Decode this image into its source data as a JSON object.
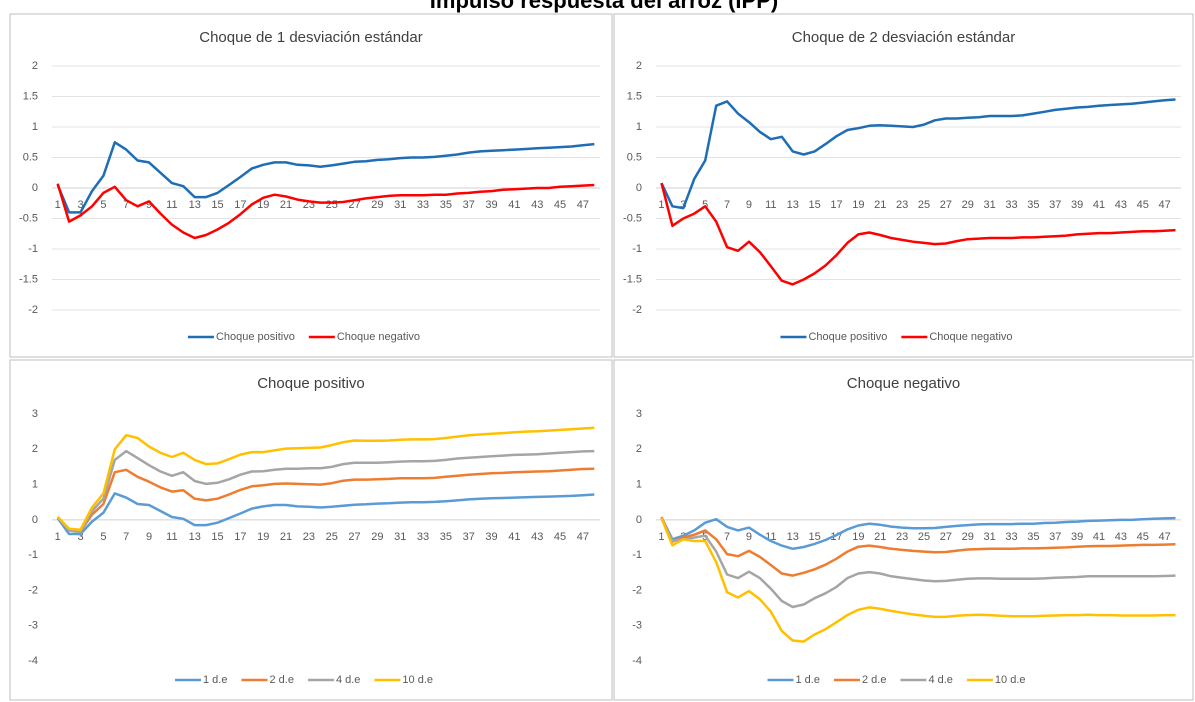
{
  "title": "Impulso respuesta del arroz (IPP)",
  "chart_data": [
    {
      "type": "line",
      "title": "Choque de 1 desviación estándar",
      "categories": [
        1,
        null,
        3,
        null,
        5,
        null,
        7,
        null,
        9,
        null,
        11,
        null,
        13,
        null,
        15,
        null,
        17,
        null,
        19,
        null,
        21,
        null,
        23,
        null,
        25,
        null,
        27,
        null,
        29,
        null,
        31,
        null,
        33,
        null,
        35,
        null,
        37,
        null,
        39,
        null,
        41,
        null,
        43,
        null,
        45,
        null,
        47,
        null
      ],
      "ylim": [
        -2,
        2
      ],
      "yticks": [
        -2,
        -1.5,
        -1,
        -0.5,
        0,
        0.5,
        1,
        1.5,
        2
      ],
      "grid": true,
      "legend": "bottom",
      "series": [
        {
          "name": "Choque positivo",
          "color": "#1f6db5",
          "values": [
            0.05,
            -0.4,
            -0.4,
            -0.05,
            0.2,
            0.75,
            0.63,
            0.45,
            0.42,
            0.25,
            0.08,
            0.03,
            -0.15,
            -0.15,
            -0.08,
            0.05,
            0.18,
            0.32,
            0.38,
            0.42,
            0.42,
            0.38,
            0.37,
            0.35,
            0.37,
            0.4,
            0.43,
            0.44,
            0.46,
            0.47,
            0.49,
            0.5,
            0.5,
            0.51,
            0.53,
            0.55,
            0.58,
            0.6,
            0.61,
            0.62,
            0.63,
            0.64,
            0.65,
            0.66,
            0.67,
            0.68,
            0.7,
            0.72
          ]
        },
        {
          "name": "Choque negativo",
          "color": "#ff0000",
          "values": [
            0.07,
            -0.55,
            -0.45,
            -0.3,
            -0.08,
            0.02,
            -0.2,
            -0.3,
            -0.22,
            -0.42,
            -0.6,
            -0.73,
            -0.82,
            -0.77,
            -0.68,
            -0.57,
            -0.43,
            -0.27,
            -0.16,
            -0.11,
            -0.14,
            -0.19,
            -0.22,
            -0.24,
            -0.24,
            -0.23,
            -0.2,
            -0.17,
            -0.15,
            -0.13,
            -0.12,
            -0.12,
            -0.12,
            -0.11,
            -0.11,
            -0.09,
            -0.08,
            -0.06,
            -0.05,
            -0.03,
            -0.02,
            -0.01,
            0,
            0,
            0.02,
            0.03,
            0.04,
            0.05
          ]
        }
      ]
    },
    {
      "type": "line",
      "title": "Choque de 2 desviación estándar",
      "categories": [
        1,
        null,
        3,
        null,
        5,
        null,
        7,
        null,
        9,
        null,
        11,
        null,
        13,
        null,
        15,
        null,
        17,
        null,
        19,
        null,
        21,
        null,
        23,
        null,
        25,
        null,
        27,
        null,
        29,
        null,
        31,
        null,
        33,
        null,
        35,
        null,
        37,
        null,
        39,
        null,
        41,
        null,
        43,
        null,
        45,
        null,
        47,
        null
      ],
      "ylim": [
        -2,
        2
      ],
      "yticks": [
        -2,
        -1.5,
        -1,
        -0.5,
        0,
        0.5,
        1,
        1.5,
        2
      ],
      "grid": true,
      "legend": "bottom",
      "series": [
        {
          "name": "Choque positivo",
          "color": "#1f6db5",
          "values": [
            0.08,
            -0.3,
            -0.33,
            0.15,
            0.45,
            1.35,
            1.42,
            1.22,
            1.08,
            0.92,
            0.8,
            0.84,
            0.6,
            0.55,
            0.6,
            0.72,
            0.85,
            0.95,
            0.98,
            1.02,
            1.03,
            1.02,
            1.01,
            1.0,
            1.04,
            1.11,
            1.14,
            1.14,
            1.15,
            1.16,
            1.18,
            1.18,
            1.18,
            1.19,
            1.22,
            1.25,
            1.28,
            1.3,
            1.32,
            1.33,
            1.35,
            1.36,
            1.37,
            1.38,
            1.4,
            1.42,
            1.44,
            1.45
          ]
        },
        {
          "name": "Choque negativo",
          "color": "#ff0000",
          "values": [
            0.08,
            -0.62,
            -0.5,
            -0.42,
            -0.3,
            -0.55,
            -0.97,
            -1.03,
            -0.88,
            -1.05,
            -1.28,
            -1.52,
            -1.58,
            -1.5,
            -1.4,
            -1.27,
            -1.1,
            -0.9,
            -0.76,
            -0.73,
            -0.77,
            -0.82,
            -0.85,
            -0.88,
            -0.9,
            -0.92,
            -0.91,
            -0.87,
            -0.84,
            -0.83,
            -0.82,
            -0.82,
            -0.82,
            -0.81,
            -0.81,
            -0.8,
            -0.79,
            -0.78,
            -0.76,
            -0.75,
            -0.74,
            -0.74,
            -0.73,
            -0.72,
            -0.71,
            -0.71,
            -0.7,
            -0.69
          ]
        }
      ]
    },
    {
      "type": "line",
      "title": "Choque positivo",
      "categories": [
        1,
        null,
        3,
        null,
        5,
        null,
        7,
        null,
        9,
        null,
        11,
        null,
        13,
        null,
        15,
        null,
        17,
        null,
        19,
        null,
        21,
        null,
        23,
        null,
        25,
        null,
        27,
        null,
        29,
        null,
        31,
        null,
        33,
        null,
        35,
        null,
        37,
        null,
        39,
        null,
        41,
        null,
        43,
        null,
        45,
        null,
        47,
        null
      ],
      "ylim": [
        -4,
        3
      ],
      "yticks": [
        -4,
        -3,
        -2,
        -1,
        0,
        1,
        2,
        3
      ],
      "grid": false,
      "legend": "bottom",
      "series": [
        {
          "name": "1 d.e",
          "color": "#5b9bd5",
          "values": [
            0.05,
            -0.4,
            -0.4,
            -0.05,
            0.2,
            0.75,
            0.63,
            0.45,
            0.42,
            0.25,
            0.08,
            0.03,
            -0.15,
            -0.15,
            -0.08,
            0.05,
            0.18,
            0.32,
            0.38,
            0.42,
            0.42,
            0.38,
            0.37,
            0.35,
            0.37,
            0.4,
            0.43,
            0.44,
            0.46,
            0.47,
            0.49,
            0.5,
            0.5,
            0.51,
            0.53,
            0.55,
            0.58,
            0.6,
            0.61,
            0.62,
            0.63,
            0.64,
            0.65,
            0.66,
            0.67,
            0.68,
            0.7,
            0.72
          ]
        },
        {
          "name": "2 d.e",
          "color": "#ed7d31",
          "values": [
            0.08,
            -0.3,
            -0.33,
            0.15,
            0.45,
            1.35,
            1.42,
            1.22,
            1.08,
            0.92,
            0.8,
            0.84,
            0.6,
            0.55,
            0.6,
            0.72,
            0.85,
            0.95,
            0.98,
            1.02,
            1.03,
            1.02,
            1.01,
            1.0,
            1.04,
            1.11,
            1.14,
            1.14,
            1.15,
            1.16,
            1.18,
            1.18,
            1.18,
            1.19,
            1.22,
            1.25,
            1.28,
            1.3,
            1.32,
            1.33,
            1.35,
            1.36,
            1.37,
            1.38,
            1.4,
            1.42,
            1.44,
            1.45
          ]
        },
        {
          "name": "4 d.e",
          "color": "#a5a5a5",
          "values": [
            0.08,
            -0.3,
            -0.35,
            0.25,
            0.6,
            1.7,
            1.95,
            1.75,
            1.55,
            1.37,
            1.25,
            1.35,
            1.1,
            1.02,
            1.05,
            1.15,
            1.28,
            1.37,
            1.38,
            1.42,
            1.45,
            1.45,
            1.46,
            1.46,
            1.5,
            1.58,
            1.62,
            1.62,
            1.62,
            1.63,
            1.65,
            1.66,
            1.66,
            1.67,
            1.7,
            1.74,
            1.76,
            1.78,
            1.8,
            1.82,
            1.84,
            1.85,
            1.86,
            1.88,
            1.9,
            1.92,
            1.94,
            1.95
          ]
        },
        {
          "name": "10 d.e",
          "color": "#ffc000",
          "values": [
            0.08,
            -0.25,
            -0.28,
            0.35,
            0.75,
            2.0,
            2.4,
            2.32,
            2.08,
            1.9,
            1.78,
            1.9,
            1.7,
            1.58,
            1.6,
            1.72,
            1.85,
            1.92,
            1.92,
            1.97,
            2.02,
            2.03,
            2.04,
            2.05,
            2.12,
            2.2,
            2.25,
            2.24,
            2.24,
            2.25,
            2.27,
            2.28,
            2.28,
            2.29,
            2.32,
            2.36,
            2.4,
            2.42,
            2.44,
            2.46,
            2.48,
            2.5,
            2.51,
            2.53,
            2.55,
            2.57,
            2.59,
            2.61
          ]
        }
      ]
    },
    {
      "type": "line",
      "title": "Choque negativo",
      "categories": [
        1,
        null,
        3,
        null,
        5,
        null,
        7,
        null,
        9,
        null,
        11,
        null,
        13,
        null,
        15,
        null,
        17,
        null,
        19,
        null,
        21,
        null,
        23,
        null,
        25,
        null,
        27,
        null,
        29,
        null,
        31,
        null,
        33,
        null,
        35,
        null,
        37,
        null,
        39,
        null,
        41,
        null,
        43,
        null,
        45,
        null,
        47,
        null
      ],
      "ylim": [
        -4,
        3
      ],
      "yticks": [
        -4,
        -3,
        -2,
        -1,
        0,
        1,
        2,
        3
      ],
      "grid": false,
      "legend": "bottom",
      "series": [
        {
          "name": "1 d.e",
          "color": "#5b9bd5",
          "values": [
            0.07,
            -0.55,
            -0.45,
            -0.3,
            -0.08,
            0.02,
            -0.2,
            -0.3,
            -0.22,
            -0.42,
            -0.6,
            -0.73,
            -0.82,
            -0.77,
            -0.68,
            -0.57,
            -0.43,
            -0.27,
            -0.16,
            -0.11,
            -0.14,
            -0.19,
            -0.22,
            -0.24,
            -0.24,
            -0.23,
            -0.2,
            -0.17,
            -0.15,
            -0.13,
            -0.12,
            -0.12,
            -0.12,
            -0.11,
            -0.11,
            -0.09,
            -0.08,
            -0.06,
            -0.05,
            -0.03,
            -0.02,
            -0.01,
            0,
            0,
            0.02,
            0.03,
            0.04,
            0.05
          ]
        },
        {
          "name": "2 d.e",
          "color": "#ed7d31",
          "values": [
            0.08,
            -0.62,
            -0.5,
            -0.42,
            -0.3,
            -0.55,
            -0.97,
            -1.03,
            -0.88,
            -1.05,
            -1.28,
            -1.52,
            -1.58,
            -1.5,
            -1.4,
            -1.27,
            -1.1,
            -0.9,
            -0.76,
            -0.73,
            -0.77,
            -0.82,
            -0.85,
            -0.88,
            -0.9,
            -0.92,
            -0.91,
            -0.87,
            -0.84,
            -0.83,
            -0.82,
            -0.82,
            -0.82,
            -0.81,
            -0.81,
            -0.8,
            -0.79,
            -0.78,
            -0.76,
            -0.75,
            -0.74,
            -0.74,
            -0.73,
            -0.72,
            -0.71,
            -0.71,
            -0.7,
            -0.69
          ]
        },
        {
          "name": "4 d.e",
          "color": "#a5a5a5",
          "values": [
            0.05,
            -0.6,
            -0.55,
            -0.5,
            -0.45,
            -0.9,
            -1.55,
            -1.65,
            -1.47,
            -1.65,
            -1.95,
            -2.3,
            -2.47,
            -2.4,
            -2.22,
            -2.08,
            -1.9,
            -1.65,
            -1.52,
            -1.48,
            -1.52,
            -1.6,
            -1.64,
            -1.68,
            -1.72,
            -1.74,
            -1.73,
            -1.7,
            -1.67,
            -1.66,
            -1.66,
            -1.67,
            -1.67,
            -1.67,
            -1.67,
            -1.66,
            -1.64,
            -1.63,
            -1.62,
            -1.6,
            -1.6,
            -1.6,
            -1.6,
            -1.6,
            -1.6,
            -1.6,
            -1.59,
            -1.58
          ]
        },
        {
          "name": "10 d.e",
          "color": "#ffc000",
          "values": [
            0.05,
            -0.72,
            -0.55,
            -0.6,
            -0.6,
            -1.2,
            -2.05,
            -2.2,
            -2.02,
            -2.25,
            -2.6,
            -3.15,
            -3.42,
            -3.45,
            -3.25,
            -3.1,
            -2.9,
            -2.7,
            -2.55,
            -2.48,
            -2.52,
            -2.58,
            -2.63,
            -2.68,
            -2.72,
            -2.75,
            -2.75,
            -2.72,
            -2.7,
            -2.69,
            -2.7,
            -2.72,
            -2.73,
            -2.73,
            -2.73,
            -2.72,
            -2.71,
            -2.7,
            -2.7,
            -2.69,
            -2.7,
            -2.7,
            -2.71,
            -2.71,
            -2.71,
            -2.71,
            -2.7,
            -2.7
          ]
        }
      ]
    }
  ]
}
